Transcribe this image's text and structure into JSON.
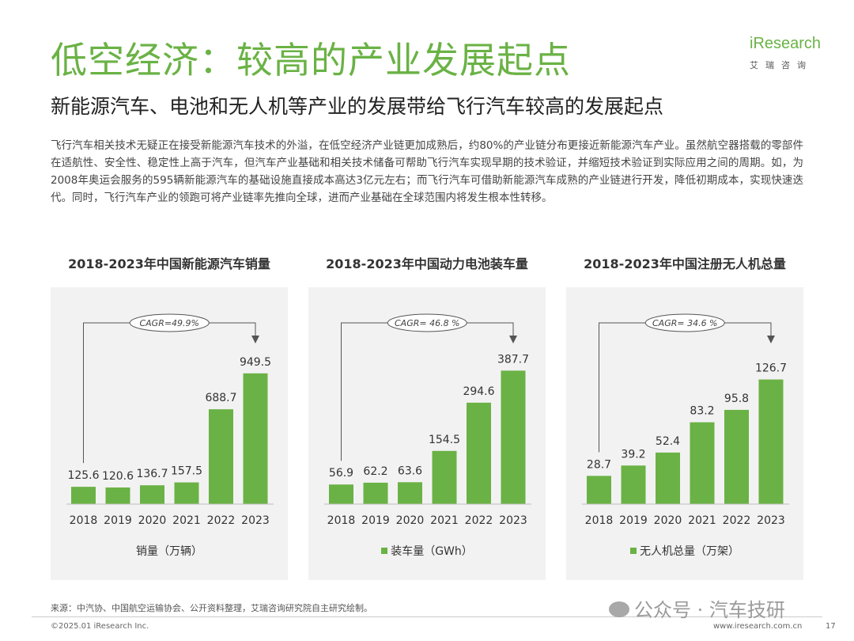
{
  "header": {
    "title": "低空经济：较高的产业发展起点",
    "subtitle": "新能源汽车、电池和无人机等产业的发展带给飞行汽车较高的发展起点",
    "logo_text": "iResearch",
    "logo_sub": "艾瑞咨询"
  },
  "body_text": "飞行汽车相关技术无疑正在接受新能源汽车技术的外溢，在低空经济产业链更加成熟后，约80%的产业链分布更接近新能源汽车产业。虽然航空器搭载的零部件在适航性、安全性、稳定性上高于汽车，但汽车产业基础和相关技术储备可帮助飞行汽车实现早期的技术验证，并缩短技术验证到实际应用之间的周期。如，为2008年奥运会服务的595辆新能源汽车的基础设施直接成本高达3亿元左右；而飞行汽车可借助新能源汽车成熟的产业链进行开发，降低初期成本，实现快速迭代。同时，飞行汽车产业的领跑可将产业链率先推向全球，进而产业基础在全球范围内将发生根本性转移。",
  "colors": {
    "accent": "#6ab245",
    "panel": "#f2f2f2"
  },
  "chart_data": [
    {
      "type": "bar",
      "title": "2018-2023年中国新能源汽车销量",
      "categories": [
        "2018",
        "2019",
        "2020",
        "2021",
        "2022",
        "2023"
      ],
      "values": [
        125.6,
        120.6,
        136.7,
        157.5,
        688.7,
        949.5
      ],
      "value_labels": [
        "125.6",
        "120.6",
        "136.7",
        "157.5",
        "688.7",
        "949.5"
      ],
      "cagr_label": "CAGR=49.9%",
      "legend": "销量（万辆）",
      "legend_marker": false,
      "ylim": [
        0,
        1000
      ]
    },
    {
      "type": "bar",
      "title": "2018-2023年中国动力电池装车量",
      "categories": [
        "2018",
        "2019",
        "2020",
        "2021",
        "2022",
        "2023"
      ],
      "values": [
        56.9,
        62.2,
        63.6,
        154.5,
        294.6,
        387.7
      ],
      "value_labels": [
        "56.9",
        "62.2",
        "63.6",
        "154.5",
        "294.6",
        "387.7"
      ],
      "cagr_label": "CAGR= 46.8 %",
      "legend": "装车量（GWh）",
      "legend_marker": true,
      "ylim": [
        0,
        400
      ]
    },
    {
      "type": "bar",
      "title": "2018-2023年中国注册无人机总量",
      "categories": [
        "2018",
        "2019",
        "2020",
        "2021",
        "2022",
        "2023"
      ],
      "values": [
        28.7,
        39.2,
        52.4,
        83.2,
        95.8,
        126.7
      ],
      "value_labels": [
        "28.7",
        "39.2",
        "52.4",
        "83.2",
        "95.8",
        "126.7"
      ],
      "cagr_label": "CAGR= 34.6 %",
      "legend": "无人机总量（万架）",
      "legend_marker": true,
      "ylim": [
        0,
        140
      ]
    }
  ],
  "footer": {
    "source": "来源：中汽协、中国航空运输协会、公开资料整理，艾瑞咨询研究院自主研究绘制。",
    "copyright": "©2025.01 iResearch Inc.",
    "website": "www.iresearch.com.cn",
    "page": "17",
    "watermark": "公众号 · 汽车技研"
  }
}
